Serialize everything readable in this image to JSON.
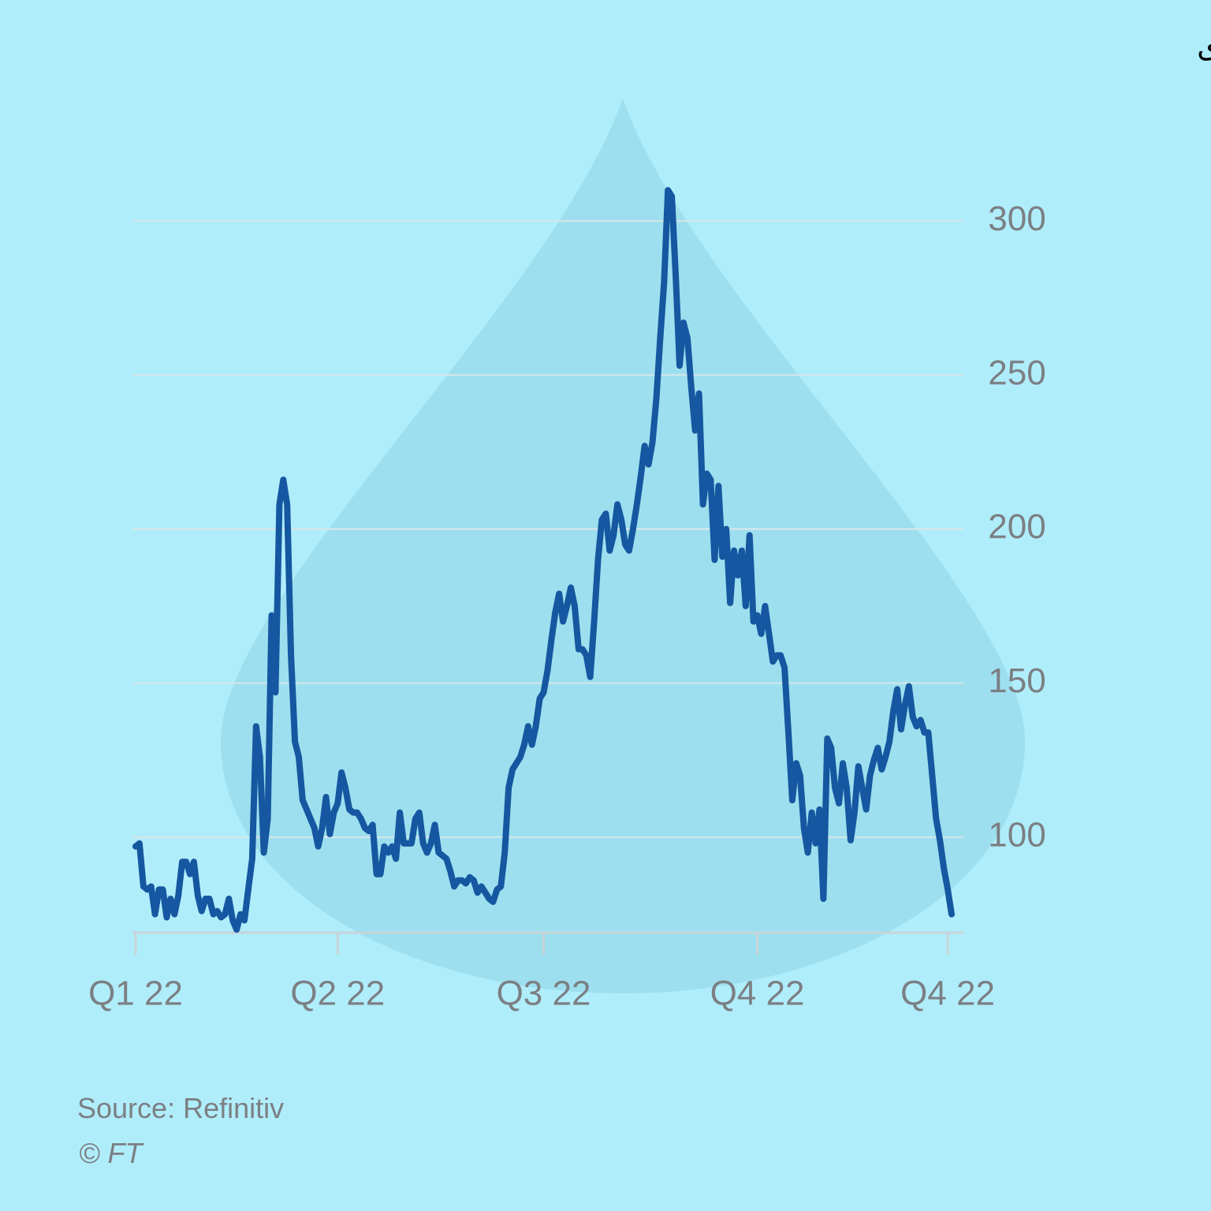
{
  "chart_data": {
    "type": "line",
    "title": "نرخی گازی سروشتی لە ئەوروپا بۆ ئاستی پێش جەنگی ئۆکرانیا دابەزی",
    "source": "Source: Refinitiv",
    "credit": "© FT",
    "series": [
      {
        "color": "#1557a0",
        "values": [
          97,
          98,
          84,
          83,
          84,
          75,
          83,
          83,
          74,
          80,
          75,
          81,
          92,
          92,
          88,
          92,
          81,
          76,
          80,
          80,
          75,
          76,
          74,
          75,
          80,
          73,
          70,
          75,
          73,
          83,
          93,
          136,
          126,
          95,
          106,
          172,
          147,
          208,
          216,
          208,
          159,
          131,
          126,
          112,
          109,
          106,
          103,
          97,
          103,
          113,
          101,
          108,
          111,
          121,
          116,
          109,
          108,
          108,
          106,
          103,
          102,
          104,
          88,
          88,
          97,
          95,
          97,
          93,
          108,
          98,
          98,
          98,
          106,
          108,
          98,
          95,
          98,
          104,
          95,
          94,
          93,
          89,
          84,
          86,
          86,
          85,
          87,
          86,
          82,
          84,
          82,
          80,
          79,
          83,
          84,
          95,
          116,
          122,
          124,
          126,
          130,
          136,
          130,
          136,
          145,
          147,
          154,
          164,
          173,
          179,
          170,
          175,
          181,
          175,
          161,
          161,
          159,
          152,
          170,
          190,
          203,
          205,
          193,
          198,
          208,
          203,
          195,
          193,
          200,
          208,
          217,
          227,
          221,
          228,
          242,
          262,
          280,
          310,
          308,
          282,
          253,
          267,
          262,
          246,
          232,
          244,
          208,
          218,
          216,
          190,
          214,
          191,
          200,
          176,
          193,
          185,
          193,
          175,
          198,
          170,
          172,
          166,
          175,
          166,
          157,
          159,
          159,
          155,
          134,
          112,
          124,
          120,
          103,
          95,
          108,
          98,
          109,
          80,
          132,
          129,
          116,
          111,
          124,
          116,
          99,
          108,
          123,
          116,
          109,
          120,
          125,
          129,
          122,
          126,
          131,
          141,
          148,
          135,
          143,
          149,
          139,
          136,
          138,
          134,
          134,
          120,
          106,
          99,
          90,
          83,
          75
        ]
      }
    ],
    "xlim": [
      0,
      210
    ],
    "xticks": [
      {
        "value": 0,
        "label": "Q1 22"
      },
      {
        "value": 52,
        "label": "Q2 22"
      },
      {
        "value": 105,
        "label": "Q3 22"
      },
      {
        "value": 160,
        "label": "Q4 22"
      },
      {
        "value": 209,
        "label": "Q4 22"
      }
    ],
    "ylim": [
      69,
      330
    ],
    "yticks": [
      100,
      150,
      200,
      250,
      300
    ],
    "grid": true
  }
}
